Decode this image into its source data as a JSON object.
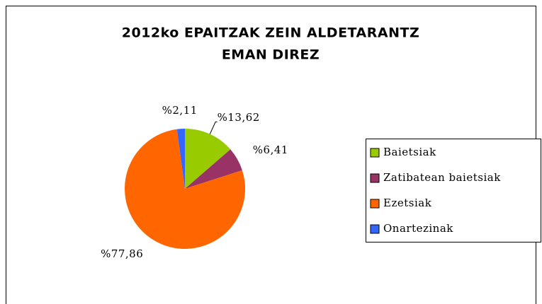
{
  "chart_data": {
    "type": "pie",
    "title": [
      "2012ko EPAITZAK ZEIN ALDETARANTZ",
      "EMAN DIREZ"
    ],
    "categories": [
      "Baietsiak",
      "Zatibatean baietsiak",
      "Ezetsiak",
      "Onartezinak"
    ],
    "values": [
      13.62,
      6.41,
      77.86,
      2.11
    ],
    "value_labels": [
      "%13,62",
      "%6,41",
      "%77,86",
      "%2,11"
    ],
    "colors": [
      "#99cc00",
      "#993366",
      "#ff6600",
      "#3366ff"
    ],
    "legend": "right"
  }
}
